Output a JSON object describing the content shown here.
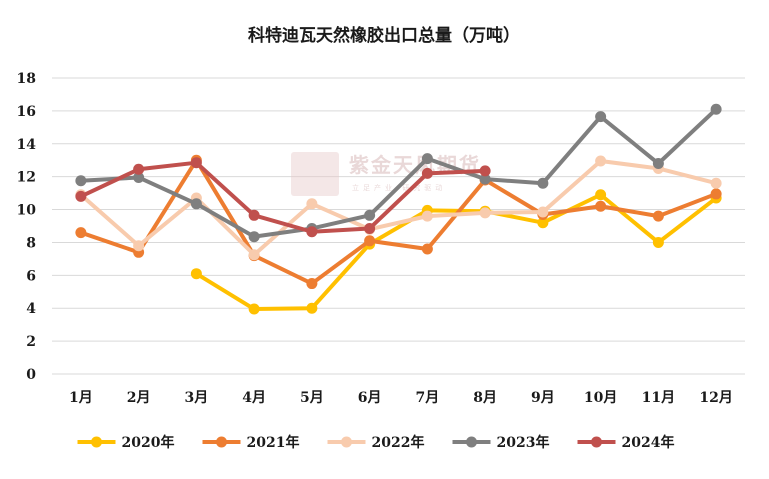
{
  "chart_data": {
    "type": "line",
    "title": "科特迪瓦天然橡胶出口总量（万吨）",
    "categories": [
      "1月",
      "2月",
      "3月",
      "4月",
      "5月",
      "6月",
      "7月",
      "8月",
      "9月",
      "10月",
      "11月",
      "12月"
    ],
    "ylim": [
      0,
      18
    ],
    "yticks": [
      0,
      2,
      4,
      6,
      8,
      10,
      12,
      14,
      16,
      18
    ],
    "grid": "horizontal",
    "legend_position": "bottom",
    "series": [
      {
        "name": "2020年",
        "color": "#ffc000",
        "values": [
          null,
          null,
          6.1,
          3.95,
          4.0,
          7.9,
          9.95,
          9.9,
          9.2,
          10.9,
          8.0,
          10.7
        ]
      },
      {
        "name": "2021年",
        "color": "#ed7d31",
        "values": [
          8.6,
          7.4,
          13.0,
          7.2,
          5.5,
          8.1,
          7.6,
          11.8,
          9.7,
          10.2,
          9.6,
          10.95
        ]
      },
      {
        "name": "2022年",
        "color": "#f8cbad",
        "values": [
          10.9,
          7.8,
          10.7,
          7.25,
          10.35,
          8.8,
          9.6,
          9.8,
          9.85,
          12.95,
          12.5,
          11.6
        ]
      },
      {
        "name": "2023年",
        "color": "#7f7f7f",
        "values": [
          11.75,
          11.95,
          10.35,
          8.35,
          8.85,
          9.65,
          13.1,
          11.85,
          11.6,
          15.65,
          12.8,
          16.1
        ]
      },
      {
        "name": "2024年",
        "color": "#c0504d",
        "values": [
          10.8,
          12.45,
          12.85,
          9.65,
          8.65,
          8.85,
          12.2,
          12.35,
          null,
          null,
          null,
          null
        ]
      }
    ]
  },
  "watermark": {
    "seal_text": "紫天金凤",
    "brand": "紫金天风期货",
    "slogan": "立足产业 研究驱动"
  }
}
